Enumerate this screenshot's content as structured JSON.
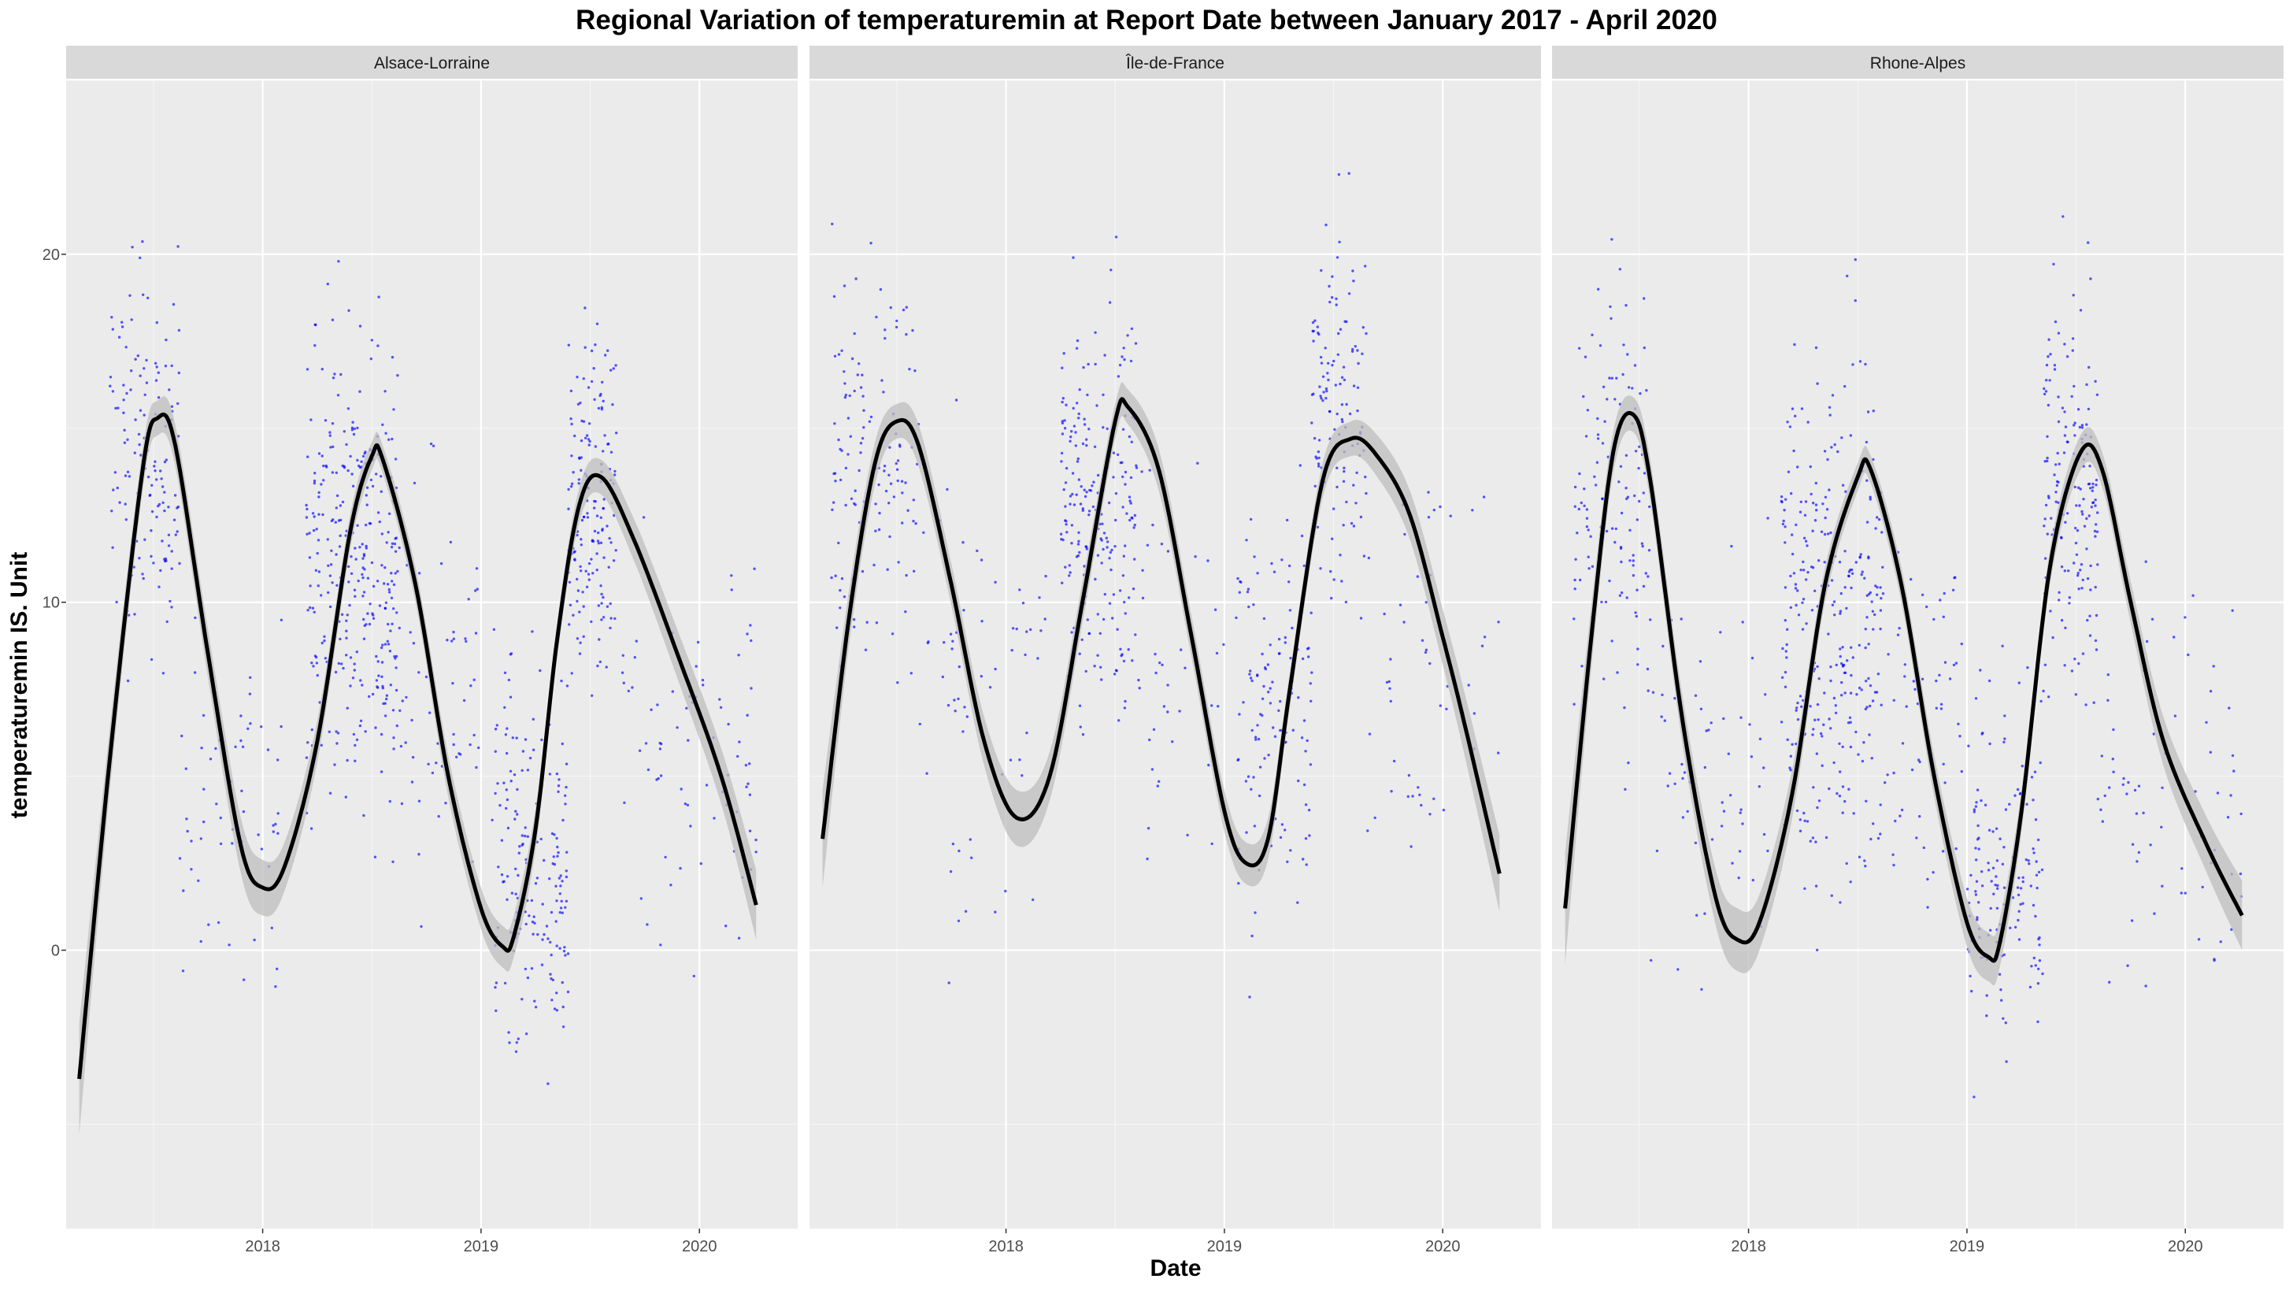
{
  "chart_data": {
    "type": "scatter",
    "title": "Regional Variation of  temperaturemin  at Report Date between January 2017 - April 2020",
    "xlabel": "Date",
    "ylabel": "temperaturemin  IS. Unit",
    "xlim": [
      2017.1,
      2020.45
    ],
    "ylim": [
      -8,
      25
    ],
    "x_ticks": [
      2018,
      2019,
      2020
    ],
    "x_tick_labels": [
      "2018",
      "2019",
      "2020"
    ],
    "y_ticks": [
      0,
      10,
      20
    ],
    "y_tick_labels": [
      "0",
      "10",
      "20"
    ],
    "grid": true,
    "legend": "none",
    "colors": {
      "points": "#0000ff",
      "smooth_line": "#000000",
      "ribbon": "#bdbdbd",
      "panel_background": "#ebebeb",
      "strip_background": "#d9d9d9",
      "grid": "#ffffff"
    },
    "panels": [
      {
        "name": "Alsace-Lorraine",
        "smooth": {
          "x": [
            2017.16,
            2017.3,
            2017.45,
            2017.52,
            2017.6,
            2017.75,
            2017.9,
            2018.0,
            2018.1,
            2018.25,
            2018.4,
            2018.5,
            2018.55,
            2018.7,
            2018.85,
            2019.0,
            2019.1,
            2019.15,
            2019.25,
            2019.35,
            2019.45,
            2019.55,
            2019.7,
            2019.9,
            2020.1,
            2020.26
          ],
          "y": [
            -3.7,
            5.5,
            13.8,
            15.3,
            14.5,
            8.5,
            3.0,
            1.8,
            2.4,
            6.0,
            12.0,
            14.2,
            14.1,
            10.5,
            5.0,
            1.2,
            0.1,
            0.4,
            3.5,
            9.0,
            12.8,
            13.6,
            11.8,
            8.5,
            5.0,
            1.3
          ]
        },
        "ribbon_half_width": [
          1.6,
          0.9,
          0.6,
          0.5,
          0.6,
          0.7,
          0.8,
          0.8,
          0.7,
          0.6,
          0.5,
          0.4,
          0.4,
          0.5,
          0.6,
          0.6,
          0.6,
          0.6,
          0.6,
          0.5,
          0.5,
          0.5,
          0.6,
          0.7,
          0.8,
          1.0
        ],
        "scatter": [
          {
            "x_range": [
              2017.3,
              2017.62
            ],
            "y_center": 14.0,
            "y_spread": 4.5,
            "count": 140
          },
          {
            "x_range": [
              2017.62,
              2018.1
            ],
            "y_center": 4.5,
            "y_spread": 4.0,
            "count": 60
          },
          {
            "x_range": [
              2018.2,
              2018.62
            ],
            "y_center": 11.0,
            "y_spread": 5.5,
            "count": 320
          },
          {
            "x_range": [
              2018.62,
              2019.0
            ],
            "y_center": 7.0,
            "y_spread": 5.0,
            "count": 60
          },
          {
            "x_range": [
              2019.05,
              2019.4
            ],
            "y_center": 2.5,
            "y_spread": 4.5,
            "count": 180
          },
          {
            "x_range": [
              2019.4,
              2019.62
            ],
            "y_center": 13.0,
            "y_spread": 4.0,
            "count": 160
          },
          {
            "x_range": [
              2019.62,
              2020.26
            ],
            "y_center": 6.0,
            "y_spread": 5.5,
            "count": 80
          }
        ]
      },
      {
        "name": "Île-de-France",
        "smooth": {
          "x": [
            2017.16,
            2017.28,
            2017.4,
            2017.5,
            2017.6,
            2017.75,
            2017.9,
            2018.05,
            2018.2,
            2018.35,
            2018.5,
            2018.56,
            2018.7,
            2018.85,
            2019.0,
            2019.1,
            2019.2,
            2019.3,
            2019.45,
            2019.58,
            2019.7,
            2019.85,
            2020.0,
            2020.1,
            2020.26
          ],
          "y": [
            3.2,
            9.5,
            14.0,
            15.2,
            14.5,
            10.5,
            6.0,
            3.8,
            5.0,
            10.0,
            15.2,
            15.6,
            13.8,
            9.0,
            4.0,
            2.5,
            3.2,
            7.5,
            13.5,
            14.7,
            14.2,
            12.5,
            9.0,
            6.5,
            2.2
          ]
        },
        "ribbon_half_width": [
          1.4,
          0.8,
          0.6,
          0.5,
          0.6,
          0.6,
          0.7,
          0.8,
          0.7,
          0.6,
          0.5,
          0.5,
          0.6,
          0.6,
          0.6,
          0.6,
          0.6,
          0.5,
          0.5,
          0.5,
          0.6,
          0.7,
          0.8,
          0.9,
          1.1
        ],
        "scatter": [
          {
            "x_range": [
              2017.2,
              2017.6
            ],
            "y_center": 14.0,
            "y_spread": 5.0,
            "count": 130
          },
          {
            "x_range": [
              2017.6,
              2018.2
            ],
            "y_center": 7.0,
            "y_spread": 5.0,
            "count": 60
          },
          {
            "x_range": [
              2018.25,
              2018.6
            ],
            "y_center": 13.0,
            "y_spread": 4.5,
            "count": 220
          },
          {
            "x_range": [
              2018.6,
              2019.0
            ],
            "y_center": 8.0,
            "y_spread": 5.0,
            "count": 40
          },
          {
            "x_range": [
              2019.05,
              2019.4
            ],
            "y_center": 6.5,
            "y_spread": 5.0,
            "count": 120
          },
          {
            "x_range": [
              2019.4,
              2019.65
            ],
            "y_center": 15.5,
            "y_spread": 4.0,
            "count": 130
          },
          {
            "x_range": [
              2019.65,
              2020.26
            ],
            "y_center": 8.0,
            "y_spread": 5.0,
            "count": 50
          }
        ]
      },
      {
        "name": "Rhone-Alpes",
        "smooth": {
          "x": [
            2017.16,
            2017.28,
            2017.38,
            2017.47,
            2017.55,
            2017.7,
            2017.85,
            2017.95,
            2018.05,
            2018.2,
            2018.35,
            2018.5,
            2018.56,
            2018.7,
            2018.85,
            2019.0,
            2019.1,
            2019.15,
            2019.25,
            2019.38,
            2019.52,
            2019.62,
            2019.75,
            2019.9,
            2020.1,
            2020.26
          ],
          "y": [
            1.2,
            9.0,
            14.3,
            15.4,
            13.5,
            6.5,
            1.5,
            0.3,
            0.8,
            4.5,
            10.5,
            13.6,
            13.8,
            10.5,
            5.0,
            0.8,
            -0.2,
            0.2,
            4.0,
            11.0,
            14.3,
            13.8,
            10.0,
            6.0,
            3.0,
            1.0
          ]
        },
        "ribbon_half_width": [
          1.6,
          0.9,
          0.6,
          0.5,
          0.6,
          0.7,
          0.8,
          0.9,
          0.8,
          0.7,
          0.5,
          0.4,
          0.4,
          0.5,
          0.6,
          0.7,
          0.7,
          0.7,
          0.6,
          0.5,
          0.5,
          0.5,
          0.6,
          0.7,
          0.8,
          1.0
        ],
        "scatter": [
          {
            "x_range": [
              2017.2,
              2017.55
            ],
            "y_center": 13.0,
            "y_spread": 5.5,
            "count": 130
          },
          {
            "x_range": [
              2017.55,
              2018.1
            ],
            "y_center": 5.5,
            "y_spread": 5.0,
            "count": 60
          },
          {
            "x_range": [
              2018.15,
              2018.62
            ],
            "y_center": 9.5,
            "y_spread": 6.0,
            "count": 300
          },
          {
            "x_range": [
              2018.62,
              2019.0
            ],
            "y_center": 7.0,
            "y_spread": 5.0,
            "count": 60
          },
          {
            "x_range": [
              2019.0,
              2019.35
            ],
            "y_center": 2.0,
            "y_spread": 4.5,
            "count": 150
          },
          {
            "x_range": [
              2019.35,
              2019.6
            ],
            "y_center": 13.0,
            "y_spread": 4.5,
            "count": 170
          },
          {
            "x_range": [
              2019.6,
              2020.26
            ],
            "y_center": 4.5,
            "y_spread": 5.0,
            "count": 70
          }
        ]
      }
    ]
  }
}
